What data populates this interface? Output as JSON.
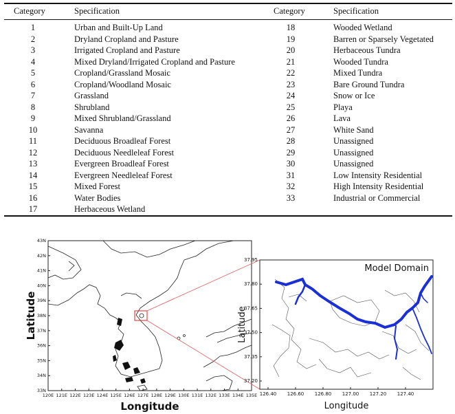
{
  "table": {
    "headers": [
      "Category",
      "Specification",
      "Category",
      "Specification"
    ],
    "left": [
      {
        "num": "1",
        "spec": "Urban and Built-Up Land"
      },
      {
        "num": "2",
        "spec": "Dryland Cropland and Pasture"
      },
      {
        "num": "3",
        "spec": "Irrigated Cropland and Pasture"
      },
      {
        "num": "4",
        "spec": "Mixed Dryland/Irrigated Cropland and Pasture"
      },
      {
        "num": "5",
        "spec": "Cropland/Grassland Mosaic"
      },
      {
        "num": "6",
        "spec": "Cropland/Woodland Mosaic"
      },
      {
        "num": "7",
        "spec": "Grassland"
      },
      {
        "num": "8",
        "spec": "Shrubland"
      },
      {
        "num": "9",
        "spec": "Mixed Shrubland/Grassland"
      },
      {
        "num": "10",
        "spec": "Savanna"
      },
      {
        "num": "11",
        "spec": "Deciduous Broadleaf Forest"
      },
      {
        "num": "12",
        "spec": "Deciduous Needleleaf Forest"
      },
      {
        "num": "13",
        "spec": "Evergreen Broadleaf Forest"
      },
      {
        "num": "14",
        "spec": "Evergreen Needleleaf Forest"
      },
      {
        "num": "15",
        "spec": "Mixed Forest"
      },
      {
        "num": "16",
        "spec": "Water Bodies"
      },
      {
        "num": "17",
        "spec": "Herbaceous Wetland"
      }
    ],
    "right": [
      {
        "num": "18",
        "spec": "Wooded Wetland"
      },
      {
        "num": "19",
        "spec": "Barren or Sparsely Vegetated"
      },
      {
        "num": "20",
        "spec": "Herbaceous Tundra"
      },
      {
        "num": "21",
        "spec": "Wooded Tundra"
      },
      {
        "num": "22",
        "spec": "Mixed Tundra"
      },
      {
        "num": "23",
        "spec": "Bare Ground Tundra"
      },
      {
        "num": "24",
        "spec": "Snow or Ice"
      },
      {
        "num": "25",
        "spec": "Playa"
      },
      {
        "num": "26",
        "spec": "Lava"
      },
      {
        "num": "27",
        "spec": "White Sand"
      },
      {
        "num": "28",
        "spec": "Unassigned"
      },
      {
        "num": "29",
        "spec": "Unassigned"
      },
      {
        "num": "30",
        "spec": "Unassigned"
      },
      {
        "num": "31",
        "spec": "Low Intensity Residential"
      },
      {
        "num": "32",
        "spec": "High Intensity Residential"
      },
      {
        "num": "33",
        "spec": "Industrial or Commercial"
      }
    ]
  },
  "left_map": {
    "xlabel": "Longitude",
    "ylabel": "Latitude",
    "y_ticks": [
      "43N",
      "42N",
      "41N",
      "40N",
      "39N",
      "38N",
      "37N",
      "36N",
      "35N",
      "34N",
      "33N"
    ],
    "x_ticks": [
      "120E",
      "121E",
      "122E",
      "123E",
      "124E",
      "125E",
      "126E",
      "127E",
      "128E",
      "129E",
      "130E",
      "131E",
      "132E",
      "133E",
      "134E",
      "135E"
    ]
  },
  "right_map": {
    "title": "Model Domain",
    "xlabel": "Longitude",
    "ylabel": "Latitude",
    "y_ticks": [
      "37.95",
      "37.80",
      "37.65",
      "37.50",
      "37.35",
      "37.20"
    ],
    "x_ticks": [
      "126.40",
      "126.60",
      "126.80",
      "127.00",
      "127.20",
      "127.40"
    ],
    "river_color": "#1a2fd6"
  }
}
